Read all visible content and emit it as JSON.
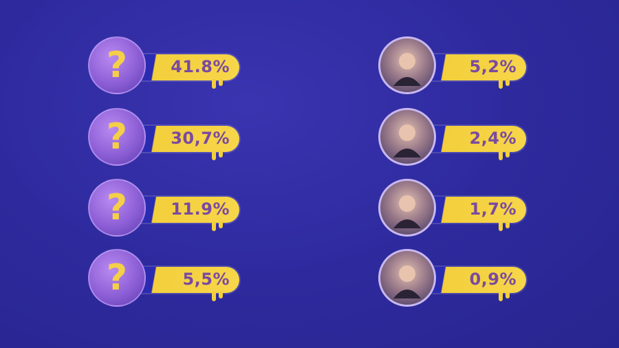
{
  "left_column": [
    {
      "icon": "question-mark-icon",
      "label": "?",
      "percent": "41.8%"
    },
    {
      "icon": "question-mark-icon",
      "label": "?",
      "percent": "30,7%"
    },
    {
      "icon": "question-mark-icon",
      "label": "?",
      "percent": "11.9%"
    },
    {
      "icon": "question-mark-icon",
      "label": "?",
      "percent": "5,5%"
    }
  ],
  "right_column": [
    {
      "icon": "contestant-photo",
      "percent": "5,2%"
    },
    {
      "icon": "contestant-photo",
      "percent": "2,4%"
    },
    {
      "icon": "contestant-photo",
      "percent": "1,7%"
    },
    {
      "icon": "contestant-photo",
      "percent": "0,9%"
    }
  ],
  "colors": {
    "background": "#2e2a9e",
    "bar": "#f3cf3c",
    "percent_text": "#7a4aa0",
    "circle": "#8d5fd6",
    "question_mark": "#f5cf48"
  }
}
